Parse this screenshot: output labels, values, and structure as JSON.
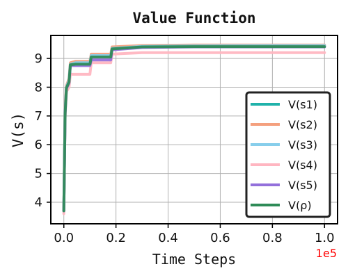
{
  "chart_data": {
    "type": "line",
    "title": "Value Function",
    "xlabel": "Time Steps",
    "ylabel": "V(s)",
    "x_scale_label": "1e5",
    "xlim": [
      -0.05,
      1.05
    ],
    "ylim": [
      3.25,
      9.8
    ],
    "xticks": [
      0.0,
      0.2,
      0.4,
      0.6,
      0.8,
      1.0
    ],
    "xtick_labels": [
      "0.0",
      "0.2",
      "0.4",
      "0.6",
      "0.8",
      "1.0"
    ],
    "yticks": [
      4,
      5,
      6,
      7,
      8,
      9
    ],
    "ytick_labels": [
      "4",
      "5",
      "6",
      "7",
      "8",
      "9"
    ],
    "grid": true,
    "legend_position": "lower-right",
    "series": [
      {
        "name": "V(s1)",
        "color": "#20B2AA",
        "x": [
          0,
          0.005,
          0.01,
          0.02,
          0.025,
          0.045,
          0.1,
          0.105,
          0.18,
          0.185,
          0.3,
          0.5,
          0.8,
          1.0
        ],
        "y": [
          3.7,
          7.2,
          8.0,
          8.2,
          8.8,
          8.85,
          8.85,
          9.1,
          9.1,
          9.35,
          9.4,
          9.42,
          9.43,
          9.43
        ]
      },
      {
        "name": "V(s2)",
        "color": "#F4A07E",
        "x": [
          0,
          0.005,
          0.01,
          0.02,
          0.025,
          0.045,
          0.1,
          0.105,
          0.18,
          0.185,
          0.3,
          0.5,
          0.8,
          1.0
        ],
        "y": [
          3.75,
          7.3,
          8.05,
          8.3,
          8.85,
          8.9,
          8.9,
          9.15,
          9.15,
          9.4,
          9.45,
          9.47,
          9.47,
          9.47
        ]
      },
      {
        "name": "V(s3)",
        "color": "#87CEEB",
        "x": [
          0,
          0.005,
          0.01,
          0.02,
          0.025,
          0.045,
          0.1,
          0.105,
          0.18,
          0.185,
          0.3,
          0.5,
          0.8,
          1.0
        ],
        "y": [
          3.7,
          7.2,
          8.0,
          8.25,
          8.8,
          8.85,
          8.85,
          9.1,
          9.1,
          9.35,
          9.42,
          9.44,
          9.45,
          9.45
        ]
      },
      {
        "name": "V(s4)",
        "color": "#FFB6C1",
        "x": [
          0,
          0.005,
          0.01,
          0.02,
          0.025,
          0.045,
          0.1,
          0.105,
          0.18,
          0.185,
          0.3,
          0.5,
          0.8,
          1.0
        ],
        "y": [
          3.6,
          7.0,
          7.85,
          8.0,
          8.45,
          8.45,
          8.45,
          8.85,
          8.85,
          9.15,
          9.2,
          9.2,
          9.2,
          9.2
        ]
      },
      {
        "name": "V(s5)",
        "color": "#9370DB",
        "x": [
          0,
          0.005,
          0.01,
          0.02,
          0.025,
          0.045,
          0.1,
          0.105,
          0.18,
          0.185,
          0.3,
          0.5,
          0.8,
          1.0
        ],
        "y": [
          3.7,
          7.1,
          7.95,
          8.15,
          8.75,
          8.75,
          8.75,
          8.95,
          8.95,
          9.3,
          9.38,
          9.4,
          9.4,
          9.4
        ]
      },
      {
        "name": "V(ρ)",
        "color": "#2E8B57",
        "x": [
          0,
          0.005,
          0.01,
          0.02,
          0.025,
          0.045,
          0.1,
          0.105,
          0.18,
          0.185,
          0.3,
          0.5,
          0.8,
          1.0
        ],
        "y": [
          3.7,
          7.1,
          7.98,
          8.18,
          8.78,
          8.8,
          8.8,
          9.05,
          9.05,
          9.33,
          9.4,
          9.41,
          9.41,
          9.41
        ]
      }
    ]
  }
}
